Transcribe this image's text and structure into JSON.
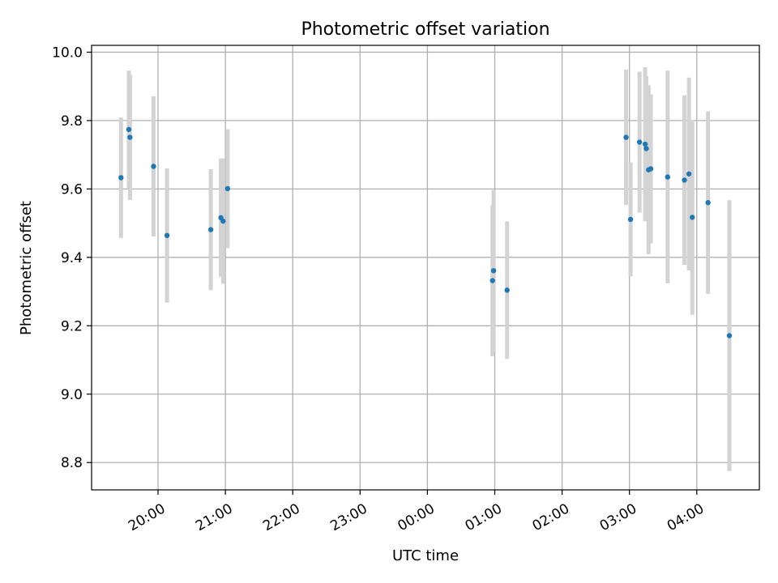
{
  "chart_data": {
    "type": "scatter",
    "title": "Photometric offset variation",
    "xlabel": "UTC time",
    "ylabel": "Photometric offset",
    "xlim": [
      "19:26",
      "05:05"
    ],
    "ylim": [
      8.72,
      10.02
    ],
    "grid": true,
    "x_ticks": [
      "20:00",
      "21:00",
      "22:00",
      "23:00",
      "00:00",
      "01:00",
      "02:00",
      "03:00",
      "04:00"
    ],
    "y_ticks": [
      "8.8",
      "9.0",
      "9.2",
      "9.4",
      "9.6",
      "9.8",
      "10.0"
    ],
    "colors": {
      "point": "#1f77b4",
      "errorbar": "#d3d3d3",
      "grid": "#b0b0b0"
    },
    "points": [
      {
        "t": "19:27",
        "y": 9.633,
        "err": 0.176
      },
      {
        "t": "19:34",
        "y": 9.774,
        "err": 0.172
      },
      {
        "t": "19:35",
        "y": 9.751,
        "err": 0.183
      },
      {
        "t": "19:56",
        "y": 9.666,
        "err": 0.205
      },
      {
        "t": "20:08",
        "y": 9.464,
        "err": 0.196
      },
      {
        "t": "20:47",
        "y": 9.481,
        "err": 0.177
      },
      {
        "t": "20:56",
        "y": 9.516,
        "err": 0.173
      },
      {
        "t": "20:58",
        "y": 9.506,
        "err": 0.183
      },
      {
        "t": "21:02",
        "y": 9.601,
        "err": 0.174
      },
      {
        "t": "00:58",
        "y": 9.332,
        "err": 0.221
      },
      {
        "t": "00:59",
        "y": 9.361,
        "err": 0.236
      },
      {
        "t": "01:11",
        "y": 9.304,
        "err": 0.201
      },
      {
        "t": "02:57",
        "y": 9.751,
        "err": 0.198
      },
      {
        "t": "03:01",
        "y": 9.511,
        "err": 0.167
      },
      {
        "t": "03:09",
        "y": 9.737,
        "err": 0.206
      },
      {
        "t": "03:14",
        "y": 9.731,
        "err": 0.225
      },
      {
        "t": "03:15",
        "y": 9.718,
        "err": 0.211
      },
      {
        "t": "03:17",
        "y": 9.656,
        "err": 0.247
      },
      {
        "t": "03:19",
        "y": 9.659,
        "err": 0.218
      },
      {
        "t": "03:34",
        "y": 9.635,
        "err": 0.311
      },
      {
        "t": "03:49",
        "y": 9.626,
        "err": 0.248
      },
      {
        "t": "03:53",
        "y": 9.644,
        "err": 0.282
      },
      {
        "t": "03:56",
        "y": 9.517,
        "err": 0.285
      },
      {
        "t": "04:10",
        "y": 9.56,
        "err": 0.267
      },
      {
        "t": "04:29",
        "y": 9.171,
        "err": 0.396
      }
    ]
  }
}
